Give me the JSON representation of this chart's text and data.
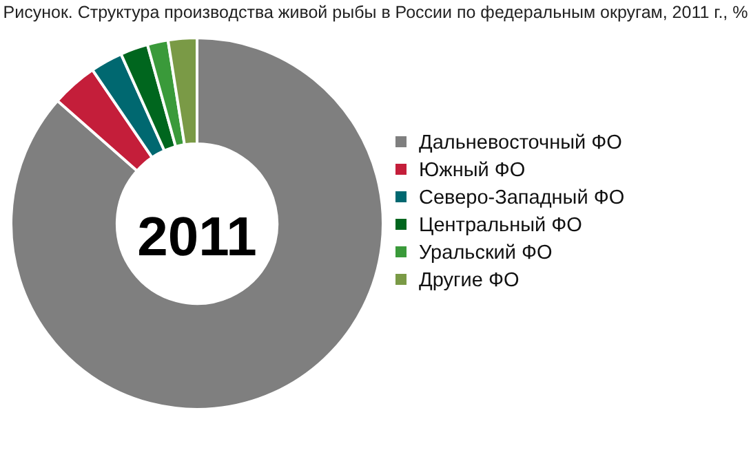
{
  "chart_data": {
    "type": "donut",
    "title": "Рисунок. Структура производства живой рыбы в России по федеральным округам, 2011 г., %",
    "categories": [
      "Дальневосточный ФО",
      "Южный ФО",
      "Северо-Западный ФО",
      "Центральный ФО",
      "Уральский ФО",
      "Другие ФО"
    ],
    "values": [
      86.5,
      4,
      2.8,
      2.4,
      1.8,
      2.5
    ],
    "colors": [
      "#7f7f7f",
      "#c41e3a",
      "#006870",
      "#00661e",
      "#3a9a3a",
      "#7a9a46"
    ],
    "legend": "right",
    "annotations": [
      "2011"
    ]
  }
}
